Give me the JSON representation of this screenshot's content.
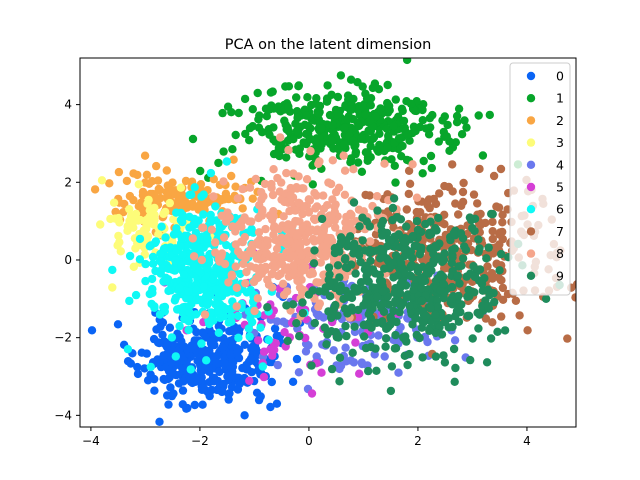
{
  "chart_data": {
    "type": "scatter",
    "title": "PCA on the latent dimension",
    "xlabel": "",
    "ylabel": "",
    "xlim": [
      -4.2,
      4.9
    ],
    "ylim": [
      -4.3,
      5.2
    ],
    "xticks": [
      -4,
      -2,
      0,
      2,
      4
    ],
    "yticks": [
      -4,
      -2,
      0,
      2,
      4
    ],
    "xtick_labels": [
      "−4",
      "−2",
      "0",
      "2",
      "4"
    ],
    "ytick_labels": [
      "−4",
      "−2",
      "0",
      "2",
      "4"
    ],
    "grid": false,
    "legend_position": "upper-right",
    "series": [
      {
        "name": "0",
        "color": "#0a64f5",
        "cx": -1.9,
        "cy": -2.6,
        "sx": 0.6,
        "sy": 0.55,
        "n": 340,
        "seed": 11
      },
      {
        "name": "1",
        "color": "#07a52a",
        "cx": 0.6,
        "cy": 3.35,
        "sx": 0.95,
        "sy": 0.55,
        "n": 380,
        "seed": 23
      },
      {
        "name": "2",
        "color": "#f9a643",
        "cx": -2.3,
        "cy": 1.6,
        "sx": 0.6,
        "sy": 0.35,
        "n": 150,
        "seed": 37
      },
      {
        "name": "3",
        "color": "#fdfc79",
        "cx": -2.9,
        "cy": 0.8,
        "sx": 0.35,
        "sy": 0.45,
        "n": 90,
        "seed": 41
      },
      {
        "name": "4",
        "color": "#6a78ee",
        "cx": 0.8,
        "cy": -1.6,
        "sx": 0.9,
        "sy": 0.6,
        "n": 140,
        "seed": 53
      },
      {
        "name": "5",
        "color": "#d53fd6",
        "cx": -0.5,
        "cy": -1.6,
        "sx": 0.8,
        "sy": 0.7,
        "n": 60,
        "seed": 67
      },
      {
        "name": "6",
        "color": "#0ff9f5",
        "cx": -1.95,
        "cy": -0.25,
        "sx": 0.55,
        "sy": 0.85,
        "n": 420,
        "seed": 71
      },
      {
        "name": "7",
        "color": "#b86c46",
        "cx": 2.6,
        "cy": 0.3,
        "sx": 0.95,
        "sy": 0.95,
        "n": 360,
        "seed": 83
      },
      {
        "name": "8",
        "color": "#f5a58b",
        "cx": -0.2,
        "cy": 0.5,
        "sx": 0.75,
        "sy": 0.85,
        "n": 420,
        "seed": 97
      },
      {
        "name": "9",
        "color": "#1f8c5c",
        "cx": 1.85,
        "cy": -0.6,
        "sx": 0.85,
        "sy": 0.95,
        "n": 520,
        "seed": 101
      }
    ]
  }
}
